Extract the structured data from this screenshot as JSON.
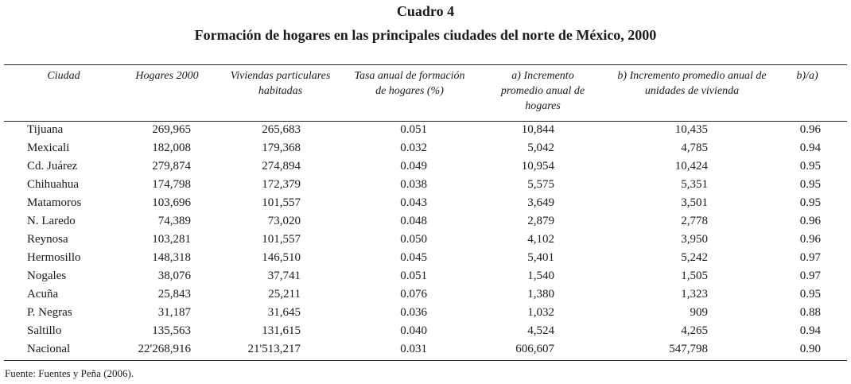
{
  "title": "Cuadro 4",
  "subtitle": "Formación de hogares en las principales ciudades del norte de México, 2000",
  "headers": [
    "Ciudad",
    "Hogares 2000",
    "Viviendas particulares habitadas",
    "Tasa anual de formación de hogares (%)",
    "a) Incremento promedio anual de hogares",
    "b) Incremento promedio anual de unidades de vivienda",
    "b)/a)"
  ],
  "rows": [
    [
      "Tijuana",
      "269,965",
      "265,683",
      "0.051",
      "10,844",
      "10,435",
      "0.96"
    ],
    [
      "Mexicali",
      "182,008",
      "179,368",
      "0.032",
      "5,042",
      "4,785",
      "0.94"
    ],
    [
      "Cd. Juárez",
      "279,874",
      "274,894",
      "0.049",
      "10,954",
      "10,424",
      "0.95"
    ],
    [
      "Chihuahua",
      "174,798",
      "172,379",
      "0.038",
      "5,575",
      "5,351",
      "0.95"
    ],
    [
      "Matamoros",
      "103,696",
      "101,557",
      "0.043",
      "3,649",
      "3,501",
      "0.95"
    ],
    [
      "N. Laredo",
      "74,389",
      "73,020",
      "0.048",
      "2,879",
      "2,778",
      "0.96"
    ],
    [
      "Reynosa",
      "103,281",
      "101,557",
      "0.050",
      "4,102",
      "3,950",
      "0.96"
    ],
    [
      "Hermosillo",
      "148,318",
      "146,510",
      "0.045",
      "5,401",
      "5,242",
      "0.97"
    ],
    [
      "Nogales",
      "38,076",
      "37,741",
      "0.051",
      "1,540",
      "1,505",
      "0.97"
    ],
    [
      "Acuña",
      "25,843",
      "25,211",
      "0.076",
      "1,380",
      "1,323",
      "0.95"
    ],
    [
      "P. Negras",
      "31,187",
      "31,645",
      "0.036",
      "1,032",
      "909",
      "0.88"
    ],
    [
      "Saltillo",
      "135,563",
      "131,615",
      "0.040",
      "4,524",
      "4,265",
      "0.94"
    ],
    [
      "Nacional",
      "22'268,916",
      "21'513,217",
      "0.031",
      "606,607",
      "547,798",
      "0.90"
    ]
  ],
  "source": "Fuente: Fuentes y Peña (2006)."
}
